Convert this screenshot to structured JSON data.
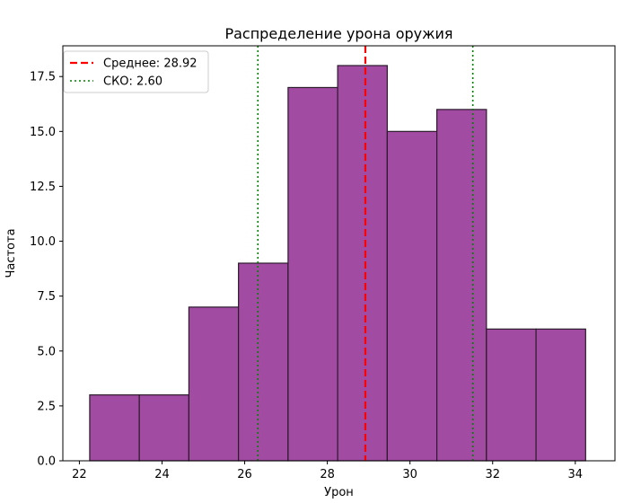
{
  "chart_data": {
    "type": "bar",
    "title": "Распределение урона оружия",
    "xlabel": "Урон",
    "ylabel": "Частота",
    "xlim": [
      21.6,
      34.96
    ],
    "ylim": [
      0,
      18.9
    ],
    "bin_edges": [
      22.25,
      23.45,
      24.65,
      25.85,
      27.05,
      28.25,
      29.45,
      30.65,
      31.85,
      33.05,
      34.25
    ],
    "values": [
      3,
      3,
      7,
      9,
      17,
      18,
      15,
      16,
      6,
      6
    ],
    "x_ticks": [
      22,
      24,
      26,
      28,
      30,
      32,
      34
    ],
    "y_ticks": [
      "0.0",
      "2.5",
      "5.0",
      "7.5",
      "10.0",
      "12.5",
      "15.0",
      "17.5"
    ],
    "mean": 28.92,
    "std": 2.6,
    "grid": false,
    "legend_position": "top-left",
    "colors": {
      "bar_fill": "#a24ba2",
      "bar_edge": "#2a1a2a",
      "mean_line": "#ff0000",
      "std_line": "#008000"
    },
    "legend": [
      {
        "label": "Среднее: 28.92",
        "style": "dashed",
        "color": "#ff0000"
      },
      {
        "label": "СКО: 2.60",
        "style": "dotted",
        "color": "#008000"
      }
    ]
  }
}
